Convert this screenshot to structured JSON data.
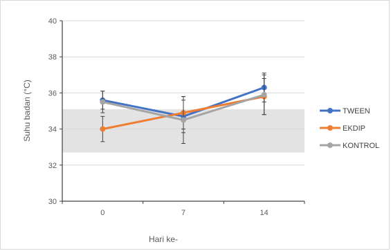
{
  "chart_data": {
    "type": "line",
    "xlabel": "Hari ke-",
    "ylabel": "Suhu badan (°C)",
    "categories": [
      "0",
      "7",
      "14"
    ],
    "ylim": [
      30,
      40
    ],
    "yticks": [
      30,
      32,
      34,
      36,
      38,
      40
    ],
    "grid": true,
    "legend_position": "right",
    "normal_range_band": [
      32.7,
      35.1
    ],
    "band_color": "#d9d9d9",
    "series": [
      {
        "name": "TWEEN",
        "color": "#4472c4",
        "values": [
          35.6,
          34.7,
          36.3
        ],
        "errors": [
          0.5,
          0.9,
          0.8
        ]
      },
      {
        "name": "EKDIP",
        "color": "#ed7d31",
        "values": [
          34.0,
          34.9,
          35.8
        ],
        "errors": [
          0.7,
          0.9,
          1.0
        ]
      },
      {
        "name": "KONTROL",
        "color": "#a5a5a5",
        "values": [
          35.5,
          34.5,
          35.9
        ],
        "errors": [
          0.6,
          1.3,
          1.1
        ]
      }
    ]
  }
}
